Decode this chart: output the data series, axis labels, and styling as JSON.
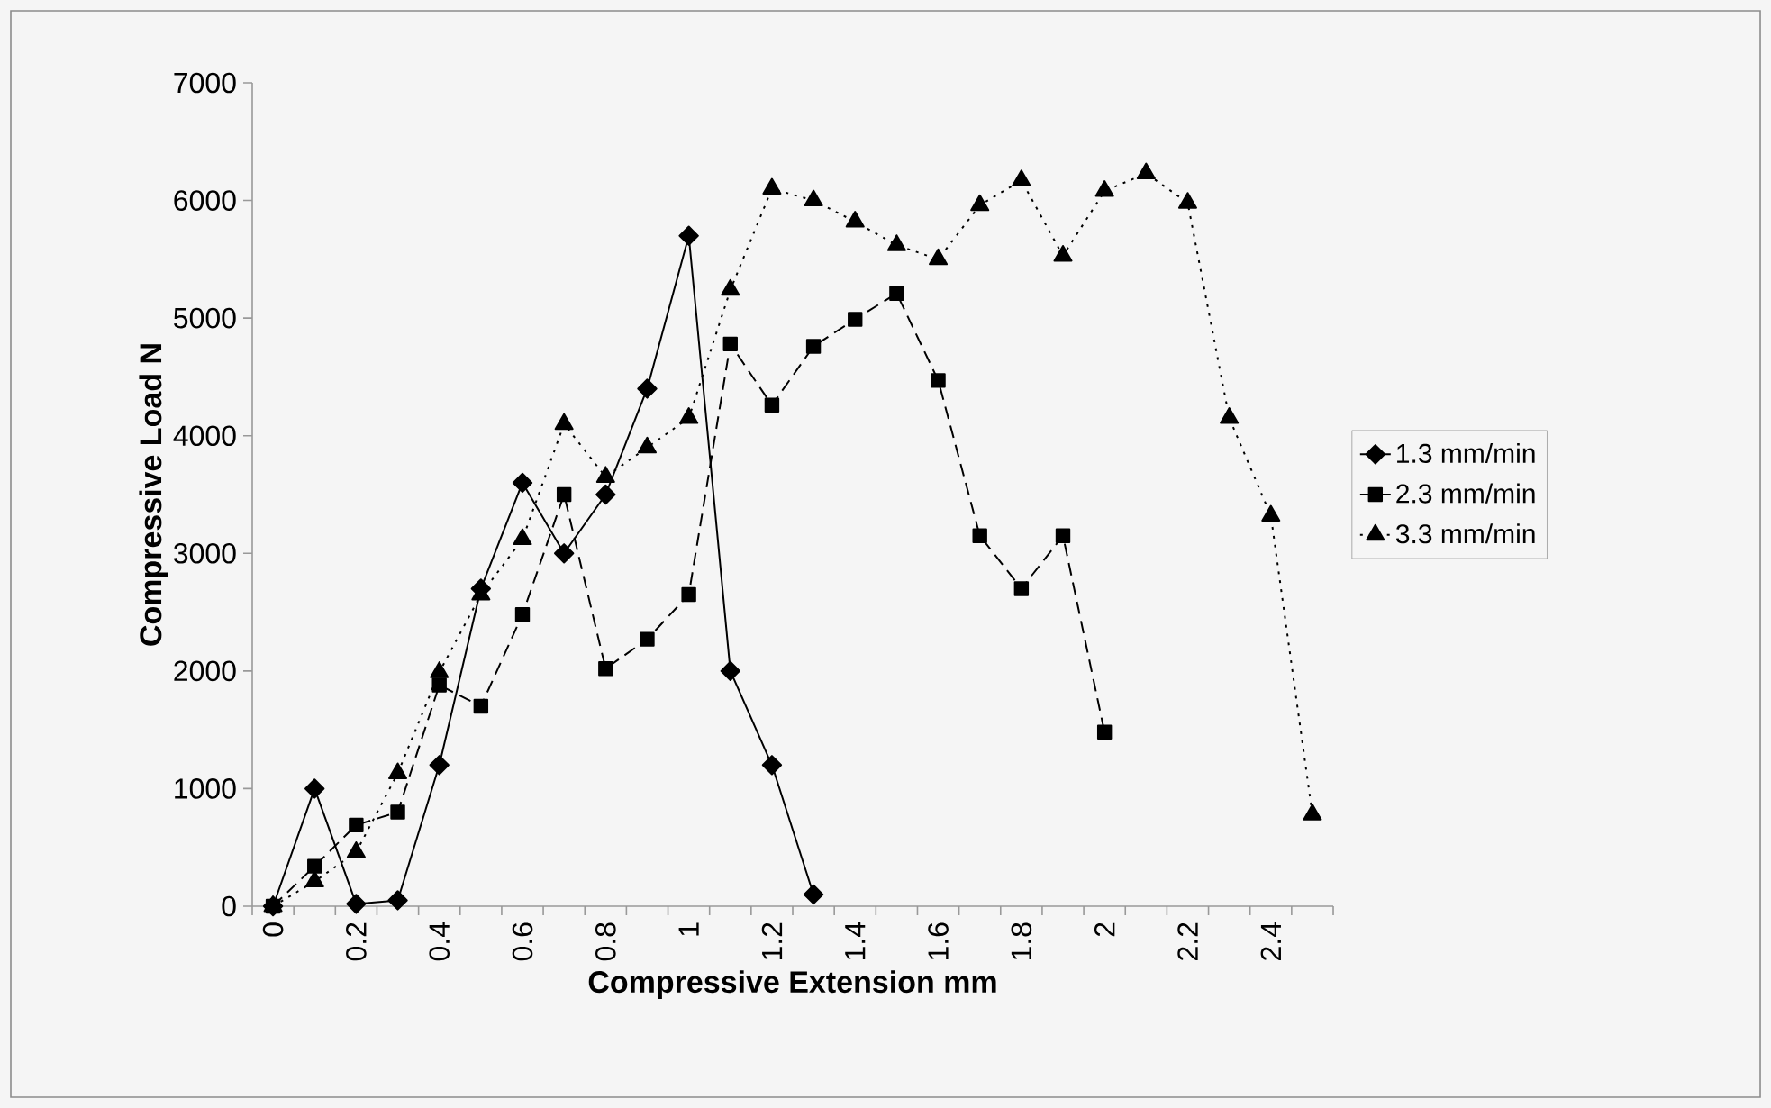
{
  "chart_data": {
    "type": "line",
    "xlabel": "Compressive Extension mm",
    "ylabel": "Compressive Load N",
    "categories": [
      "0",
      null,
      "0.2",
      null,
      "0.4",
      null,
      "0.6",
      null,
      "0.8",
      null,
      "1",
      null,
      "1.2",
      null,
      "1.4",
      null,
      "1.6",
      null,
      "1.8",
      null,
      "2",
      null,
      "2.2",
      null,
      "2.4",
      null
    ],
    "series": [
      {
        "name": "1.3 mm/min",
        "color": "#000000",
        "marker": "diamond",
        "line_style": "solid",
        "values": [
          0,
          1000,
          20,
          50,
          1200,
          2700,
          3600,
          3000,
          3500,
          4400,
          5700,
          2000,
          1200,
          100,
          null,
          null,
          null,
          null,
          null,
          null,
          null,
          null,
          null,
          null,
          null,
          null
        ]
      },
      {
        "name": "2.3 mm/min",
        "color": "#000000",
        "marker": "square",
        "line_style": "dashed",
        "values": [
          0,
          340,
          690,
          800,
          1880,
          1700,
          2480,
          3500,
          2020,
          2270,
          2650,
          4780,
          4260,
          4760,
          4990,
          5210,
          4470,
          3150,
          2700,
          3150,
          1480,
          null,
          null,
          null,
          null,
          null
        ]
      },
      {
        "name": "3.3 mm/min",
        "color": "#000000",
        "marker": "triangle",
        "line_style": "dotted",
        "values": [
          0,
          210,
          460,
          1130,
          1990,
          2650,
          3120,
          4100,
          3650,
          3900,
          4150,
          5240,
          6100,
          6000,
          5820,
          5620,
          5500,
          5960,
          6170,
          5530,
          6080,
          6230,
          5980,
          4150,
          3320,
          780
        ]
      }
    ],
    "ylim": [
      0,
      7000
    ],
    "yticks": [
      0,
      1000,
      2000,
      3000,
      4000,
      5000,
      6000,
      7000
    ],
    "grid": false,
    "legend": "right"
  }
}
